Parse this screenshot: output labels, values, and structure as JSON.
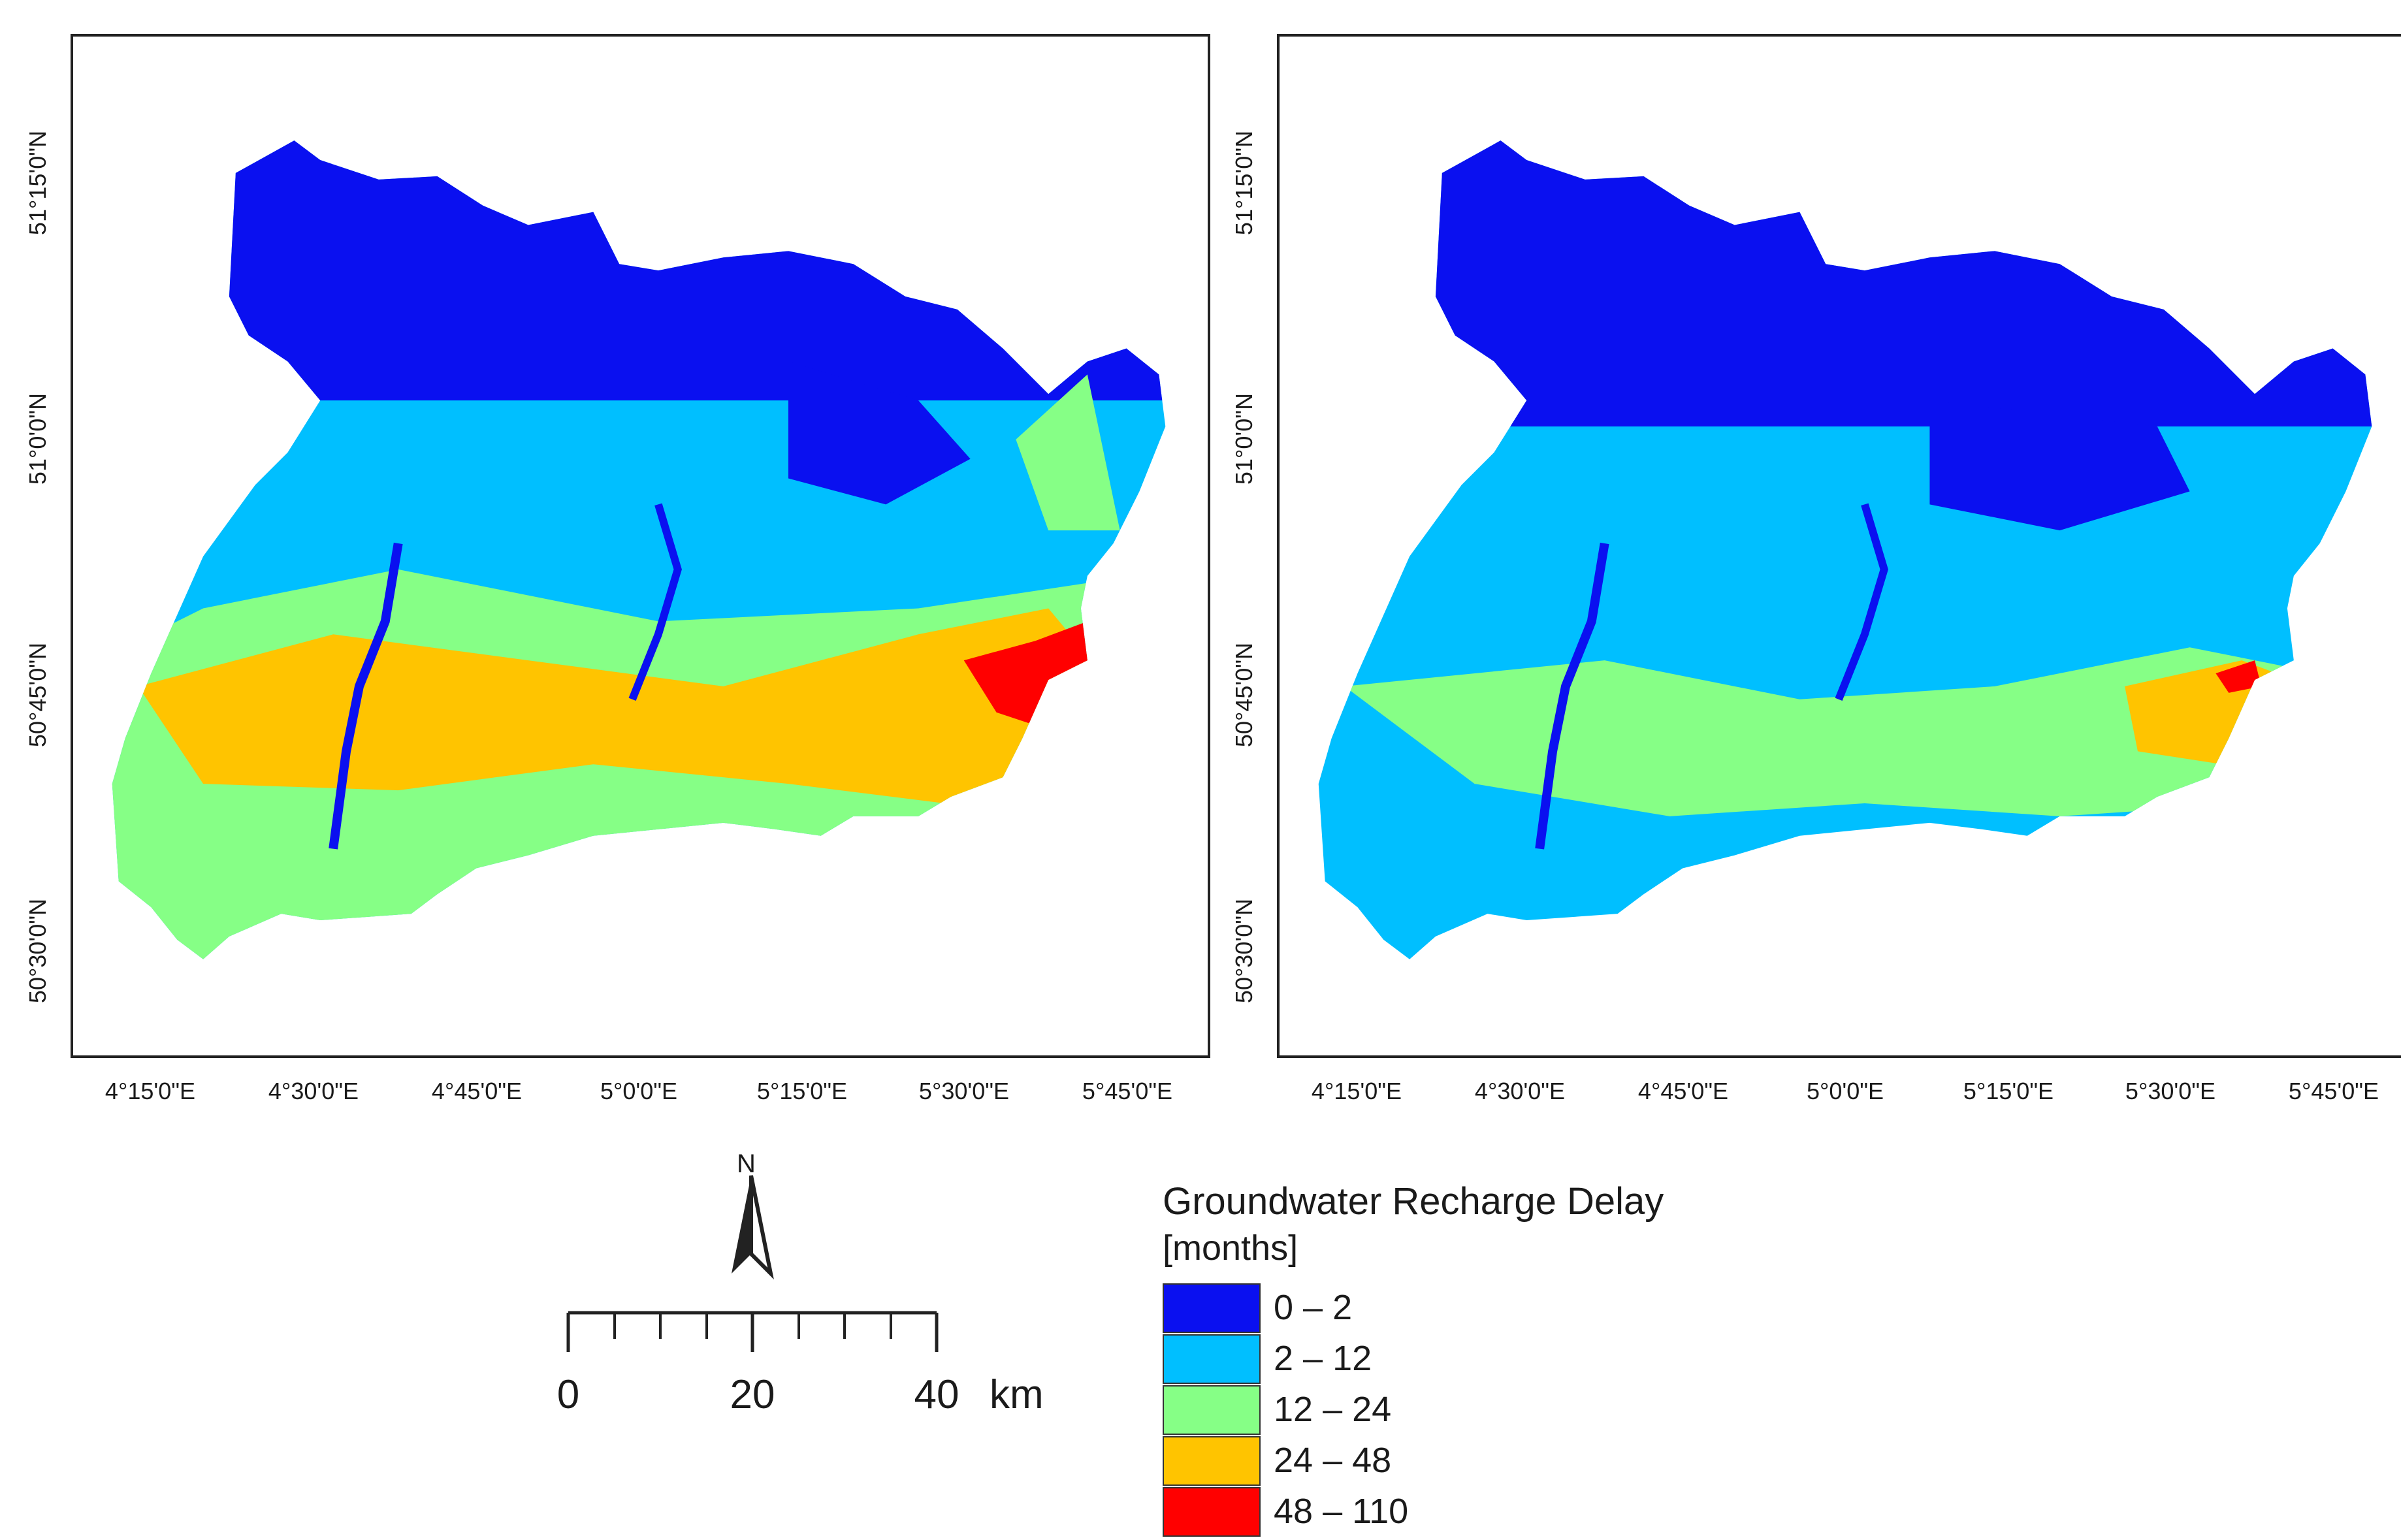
{
  "maps": [
    {
      "id": "left",
      "zone_colors": [
        "#0a10f0",
        "#00bfff",
        "#86ff86",
        "#ffc400",
        "#ff0000"
      ],
      "has_hotspot": true
    },
    {
      "id": "right",
      "zone_colors": [
        "#0a10f0",
        "#00bfff",
        "#00bfff",
        "#86ff86",
        "#ffc400"
      ],
      "has_hotspot": false
    }
  ],
  "axes": {
    "latitude_labels": [
      "51°15'0\"N",
      "51°0'0\"N",
      "50°45'0\"N",
      "50°30'0\"N"
    ],
    "longitude_labels": [
      "4°15'0\"E",
      "4°30'0\"E",
      "4°45'0\"E",
      "5°0'0\"E",
      "5°15'0\"E",
      "5°30'0\"E",
      "5°45'0\"E"
    ]
  },
  "north_arrow": {
    "letter": "N"
  },
  "scale": {
    "ticks": [
      "0",
      "20",
      "40"
    ],
    "unit": "km"
  },
  "legend": {
    "title": "Groundwater Recharge Delay",
    "unit": "[months]",
    "items": [
      {
        "label": "0 – 2",
        "color": "#0a10f0"
      },
      {
        "label": "2 – 12",
        "color": "#00bfff"
      },
      {
        "label": "12 – 24",
        "color": "#86ff86"
      },
      {
        "label": "24 – 48",
        "color": "#ffc400"
      },
      {
        "label": "48 – 110",
        "color": "#ff0000"
      }
    ]
  }
}
